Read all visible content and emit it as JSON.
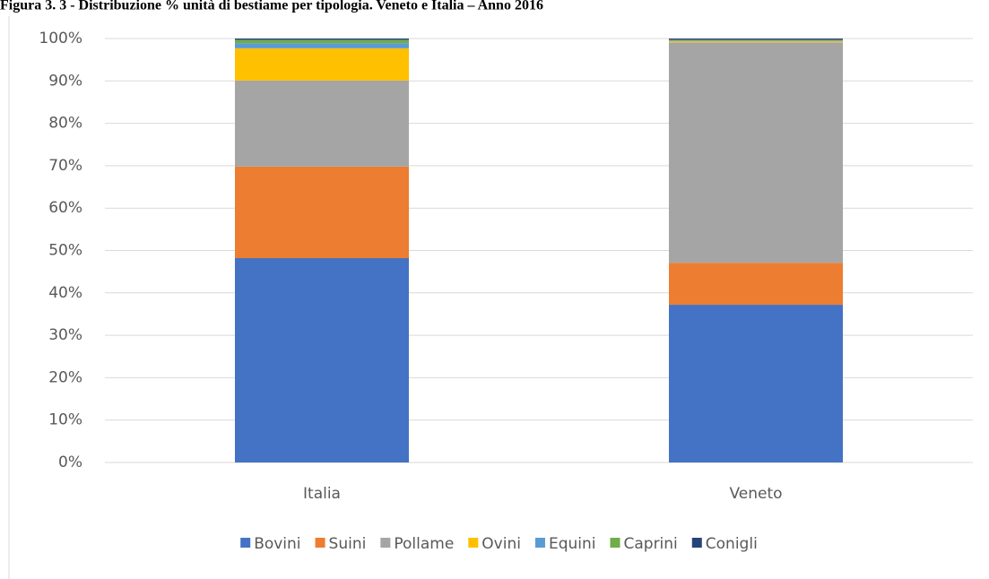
{
  "chart_data": {
    "type": "stacked_bar",
    "title": "Figura 3. 3 - Distribuzione % unità di bestiame per tipologia. Veneto e Italia – Anno 2016",
    "categories": [
      "Italia",
      "Veneto"
    ],
    "series": [
      {
        "name": "Bovini",
        "color": "#4472c4",
        "values": [
          48.2,
          37.2
        ]
      },
      {
        "name": "Suini",
        "color": "#ed7d31",
        "values": [
          21.6,
          9.9
        ]
      },
      {
        "name": "Pollame",
        "color": "#a5a5a5",
        "values": [
          20.3,
          52.0
        ]
      },
      {
        "name": "Ovini",
        "color": "#ffc000",
        "values": [
          7.6,
          0.3
        ]
      },
      {
        "name": "Equini",
        "color": "#5b9bd5",
        "values": [
          1.2,
          0.2
        ]
      },
      {
        "name": "Caprini",
        "color": "#70ad47",
        "values": [
          0.8,
          0.1
        ]
      },
      {
        "name": "Conigli",
        "color": "#264478",
        "values": [
          0.3,
          0.3
        ]
      }
    ],
    "ylim": [
      0,
      100
    ],
    "yticks": [
      {
        "value": 0,
        "label": "0%"
      },
      {
        "value": 10,
        "label": "10%"
      },
      {
        "value": 20,
        "label": "20%"
      },
      {
        "value": 30,
        "label": "30%"
      },
      {
        "value": 40,
        "label": "40%"
      },
      {
        "value": 50,
        "label": "50%"
      },
      {
        "value": 60,
        "label": "60%"
      },
      {
        "value": 70,
        "label": "70%"
      },
      {
        "value": 80,
        "label": "80%"
      },
      {
        "value": 90,
        "label": "90%"
      },
      {
        "value": 100,
        "label": "100%"
      }
    ],
    "grid": true,
    "legend": "bottom"
  }
}
